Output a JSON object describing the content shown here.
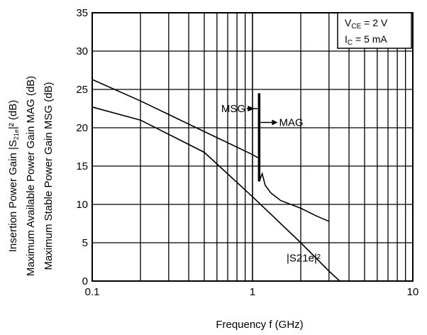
{
  "chart_data": {
    "type": "line",
    "x_scale": "log",
    "xlim": [
      0.1,
      10
    ],
    "ylim": [
      0,
      35
    ],
    "grid": true,
    "x_ticks": [
      "0.1",
      "1",
      "10"
    ],
    "y_ticks": [
      "0",
      "5",
      "10",
      "15",
      "20",
      "25",
      "30",
      "35"
    ],
    "xlabel": "Frequency  f (GHz)",
    "ylabel_lines": [
      "Maximum  Stable Power Gain  MSG (dB)",
      "Maximum  Available Power Gain  MAG (dB)",
      "Insertion  Power Gain  |S21e|² (dB)"
    ],
    "conditions": [
      "VCE = 2 V",
      "IC = 5 mA"
    ],
    "series": [
      {
        "label": "MSG",
        "x": [
          0.1,
          0.2,
          0.5,
          1.0,
          1.1
        ],
        "y": [
          26.3,
          23.5,
          19.5,
          16.5,
          16.0
        ],
        "color": "#000000"
      },
      {
        "label": "MAG",
        "x": [
          1.1,
          1.15,
          1.2,
          1.3,
          1.5,
          2.0,
          2.5,
          3.0
        ],
        "y": [
          13.0,
          14.0,
          12.5,
          11.5,
          10.5,
          9.5,
          8.5,
          7.8
        ],
        "color": "#000000"
      },
      {
        "label": "|S21e|²",
        "x": [
          0.1,
          0.2,
          0.5,
          1.0,
          2.0,
          3.0,
          3.5
        ],
        "y": [
          22.7,
          21.0,
          16.8,
          11.0,
          5.0,
          1.3,
          0
        ],
        "color": "#000000"
      }
    ],
    "annotations": [
      {
        "text": "MSG",
        "x": 1.0,
        "y": 22.5
      },
      {
        "text": "MAG",
        "x": 1.35,
        "y": 20.7
      },
      {
        "text": "|S21e|²",
        "x": 2.0,
        "y": 3.0
      }
    ],
    "stability_boundary": {
      "x": 1.1,
      "y_range": [
        13.0,
        24.5
      ]
    }
  }
}
